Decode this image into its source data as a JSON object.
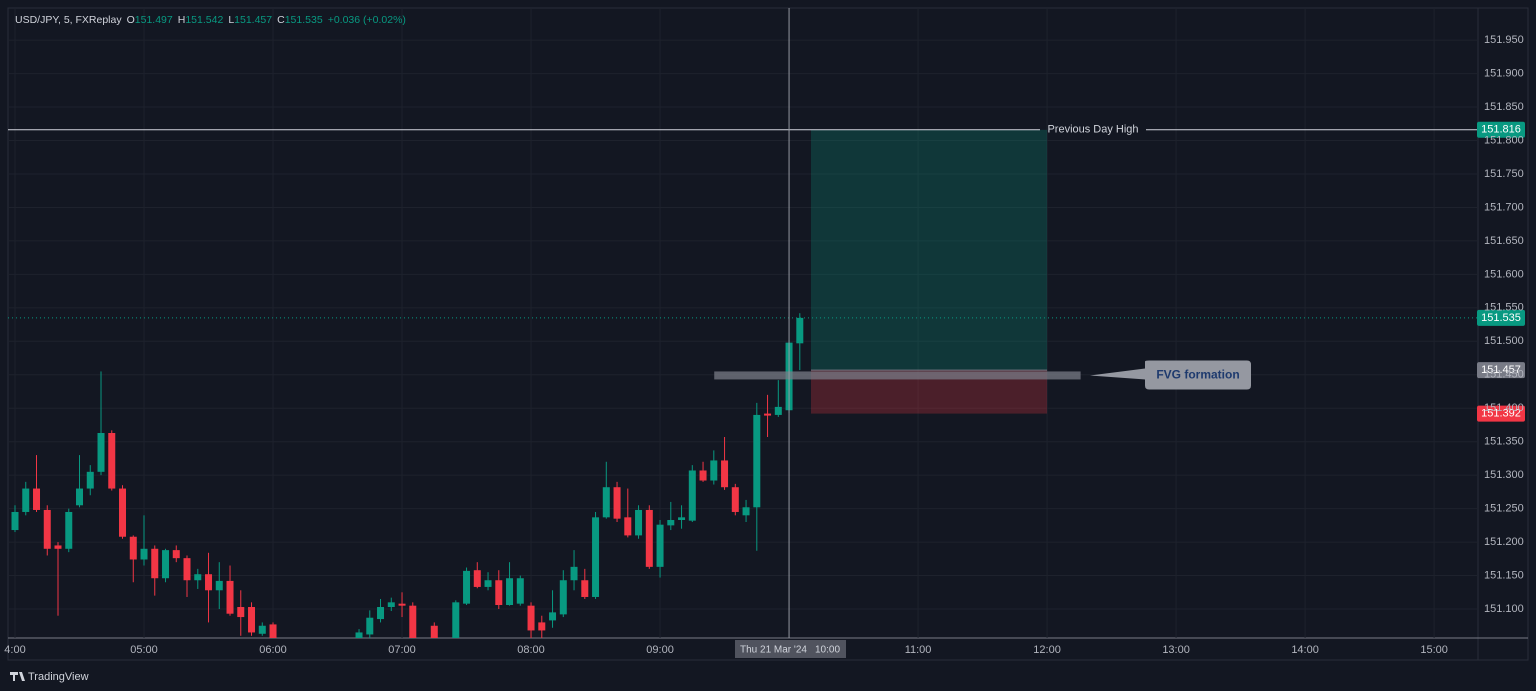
{
  "brand": "TradingView",
  "chart_data": {
    "type": "candlestick",
    "title": "USD/JPY, 5, FXReplay",
    "header": {
      "labels": [
        "O",
        "H",
        "L",
        "C"
      ],
      "change": "+0.036 (+0.02%)"
    },
    "up_color": "#089981",
    "down_color": "#f23645",
    "x": [
      4,
      4.0833,
      4.1667,
      4.25,
      4.3333,
      4.4167,
      4.5,
      4.5833,
      4.6667,
      4.75,
      4.8333,
      4.9167,
      5,
      5.0833,
      5.1667,
      5.25,
      5.3333,
      5.4167,
      5.5,
      5.5833,
      5.6667,
      5.75,
      5.8333,
      5.9167,
      6,
      6.6667,
      6.75,
      6.8333,
      6.9167,
      7,
      7.0833,
      7.25,
      7.4167,
      7.5,
      7.5833,
      7.6667,
      7.75,
      7.8333,
      7.9167,
      8,
      8.0833,
      8.1667,
      8.25,
      8.3333,
      8.4167,
      8.5,
      8.5833,
      8.6667,
      8.75,
      8.8333,
      8.9167,
      9,
      9.0833,
      9.1667,
      9.25,
      9.3333,
      9.4167,
      9.5,
      9.5833,
      9.6667,
      9.75,
      9.8333,
      9.9167,
      10,
      10.0833
    ],
    "open": [
      151.218,
      151.245,
      151.28,
      151.248,
      151.195,
      151.19,
      151.255,
      151.28,
      151.305,
      151.363,
      151.28,
      151.208,
      151.174,
      151.19,
      151.146,
      151.188,
      151.176,
      151.143,
      151.152,
      151.128,
      151.142,
      151.103,
      151.103,
      151.063,
      151.077,
      151.055,
      151.062,
      151.085,
      151.103,
      151.108,
      151.105,
      151.075,
      151.05,
      151.108,
      151.158,
      151.133,
      151.143,
      151.106,
      151.108,
      151.105,
      151.08,
      151.083,
      151.092,
      151.143,
      151.143,
      151.118,
      151.237,
      151.282,
      151.237,
      151.21,
      151.248,
      151.163,
      151.225,
      151.233,
      151.232,
      151.307,
      151.292,
      151.322,
      151.282,
      151.24,
      151.252,
      151.392,
      151.39,
      151.397,
      151.497
    ],
    "high": [
      151.255,
      151.29,
      151.33,
      151.255,
      151.2,
      151.25,
      151.33,
      151.315,
      151.455,
      151.367,
      151.285,
      151.21,
      151.24,
      151.195,
      151.19,
      151.195,
      151.18,
      151.16,
      151.184,
      151.17,
      151.165,
      151.128,
      151.11,
      151.08,
      151.08,
      151.07,
      151.098,
      151.115,
      151.117,
      151.125,
      151.11,
      151.08,
      151.113,
      151.162,
      151.17,
      151.155,
      151.158,
      151.17,
      151.15,
      151.11,
      151.09,
      151.128,
      151.158,
      151.188,
      151.16,
      151.245,
      151.32,
      151.29,
      151.28,
      151.255,
      151.255,
      151.233,
      151.26,
      151.255,
      151.315,
      151.32,
      151.337,
      151.357,
      151.287,
      151.263,
      151.408,
      151.42,
      151.442,
      151.502,
      151.542
    ],
    "low": [
      151.215,
      151.24,
      151.245,
      151.18,
      151.09,
      151.185,
      151.252,
      151.27,
      151.3,
      151.277,
      151.205,
      151.14,
      151.165,
      151.12,
      151.14,
      151.17,
      151.118,
      151.13,
      151.08,
      151.1,
      151.09,
      151.06,
      151.06,
      151.06,
      151.045,
      151.05,
      151.055,
      151.08,
      151.097,
      151.088,
      151.045,
      151.045,
      151.045,
      151.106,
      151.131,
      151.128,
      151.1,
      151.105,
      151.105,
      151.05,
      151.05,
      151.072,
      151.088,
      151.128,
      151.115,
      151.115,
      151.235,
      151.23,
      151.207,
      151.205,
      151.16,
      151.147,
      151.218,
      151.22,
      151.23,
      151.29,
      151.286,
      151.278,
      151.24,
      151.23,
      151.187,
      151.357,
      151.387,
      151.393,
      151.457
    ],
    "close": [
      151.245,
      151.28,
      151.248,
      151.19,
      151.19,
      151.245,
      151.28,
      151.305,
      151.363,
      151.28,
      151.208,
      151.174,
      151.19,
      151.146,
      151.188,
      151.176,
      151.143,
      151.152,
      151.128,
      151.142,
      151.093,
      151.088,
      151.065,
      151.075,
      151.05,
      151.065,
      151.087,
      151.103,
      151.11,
      151.105,
      151.05,
      151.05,
      151.11,
      151.157,
      151.133,
      151.143,
      151.106,
      151.146,
      151.146,
      151.068,
      151.068,
      151.095,
      151.143,
      151.163,
      151.118,
      151.237,
      151.282,
      151.235,
      151.21,
      151.248,
      151.163,
      151.226,
      151.233,
      151.237,
      151.307,
      151.292,
      151.322,
      151.282,
      151.245,
      151.252,
      151.39,
      151.389,
      151.402,
      151.498,
      151.535
    ],
    "xlim": [
      3.9457,
      15.3403
    ],
    "ylim": [
      151.0567,
      151.998
    ],
    "grid": true,
    "xticks": [
      {
        "value": 4,
        "label": "4:00"
      },
      {
        "value": 5,
        "label": "05:00"
      },
      {
        "value": 6,
        "label": "06:00"
      },
      {
        "value": 7,
        "label": "07:00"
      },
      {
        "value": 8,
        "label": "08:00"
      },
      {
        "value": 9,
        "label": "09:00"
      },
      {
        "value": 11,
        "label": "11:00"
      },
      {
        "value": 12,
        "label": "12:00"
      },
      {
        "value": 13,
        "label": "13:00"
      },
      {
        "value": 14,
        "label": "14:00"
      },
      {
        "value": 15,
        "label": "15:00"
      }
    ],
    "yticks": [
      {
        "value": 151.1,
        "label": "151.100"
      },
      {
        "value": 151.15,
        "label": "151.150"
      },
      {
        "value": 151.2,
        "label": "151.200"
      },
      {
        "value": 151.25,
        "label": "151.250"
      },
      {
        "value": 151.3,
        "label": "151.300"
      },
      {
        "value": 151.35,
        "label": "151.350"
      },
      {
        "value": 151.4,
        "label": "151.400"
      },
      {
        "value": 151.45,
        "label": "151.450"
      },
      {
        "value": 151.5,
        "label": "151.500"
      },
      {
        "value": 151.55,
        "label": "151.550"
      },
      {
        "value": 151.6,
        "label": "151.600"
      },
      {
        "value": 151.65,
        "label": "151.650"
      },
      {
        "value": 151.7,
        "label": "151.700"
      },
      {
        "value": 151.75,
        "label": "151.750"
      },
      {
        "value": 151.8,
        "label": "151.800"
      },
      {
        "value": 151.85,
        "label": "151.850"
      },
      {
        "value": 151.9,
        "label": "151.900"
      },
      {
        "value": 151.95,
        "label": "151.950"
      }
    ],
    "previous_day_high": {
      "value": 151.816,
      "label": "Previous Day High"
    },
    "position": {
      "entry": 151.457,
      "target": 151.816,
      "stop": 151.392,
      "start": 10.17,
      "end": 12
    },
    "fvg": {
      "value": 151.449,
      "start": 9.42,
      "end": 12.26,
      "label": "FVG formation"
    },
    "crosshair": {
      "x": 10,
      "date_label": "Thu 21 Mar '24",
      "time_label": "10:00"
    }
  }
}
